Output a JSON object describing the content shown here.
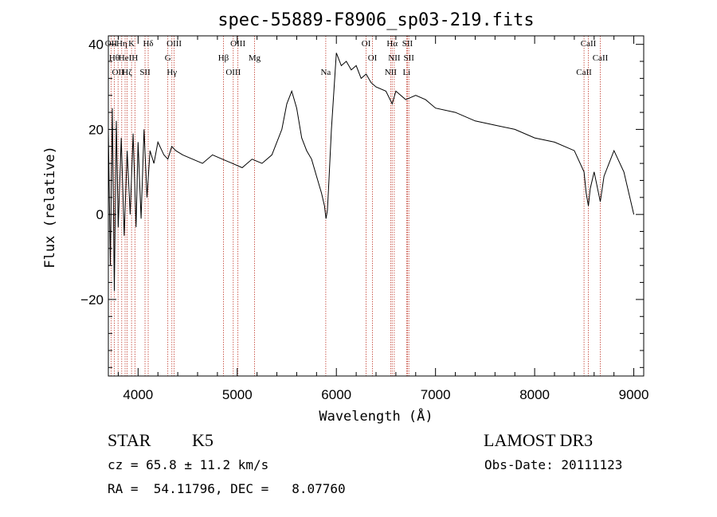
{
  "chart_data": {
    "type": "line",
    "title": "spec-55889-F8906_sp03-219.fits",
    "xlabel": "Wavelength (Å)",
    "ylabel": "Flux (relative)",
    "xlim": [
      3700,
      9100
    ],
    "ylim": [
      -38,
      42
    ],
    "xticks": [
      4000,
      5000,
      6000,
      7000,
      8000,
      9000
    ],
    "xtick_labels": [
      "4000",
      "5000",
      "6000",
      "7000",
      "8000",
      "9000"
    ],
    "yticks": [
      -20,
      0,
      20,
      40
    ],
    "ytick_labels": [
      "−20",
      "0",
      "20",
      "40"
    ],
    "series": [
      {
        "name": "spectrum",
        "x": [
          3700,
          3720,
          3740,
          3760,
          3780,
          3800,
          3830,
          3860,
          3890,
          3920,
          3950,
          3980,
          4000,
          4030,
          4060,
          4090,
          4120,
          4160,
          4200,
          4260,
          4300,
          4340,
          4380,
          4450,
          4550,
          4650,
          4750,
          4850,
          4950,
          5050,
          5150,
          5250,
          5350,
          5450,
          5500,
          5550,
          5600,
          5650,
          5700,
          5750,
          5800,
          5850,
          5880,
          5895,
          5910,
          5925,
          5950,
          6000,
          6050,
          6100,
          6150,
          6200,
          6250,
          6300,
          6350,
          6400,
          6500,
          6563,
          6600,
          6700,
          6800,
          6900,
          7000,
          7200,
          7400,
          7600,
          7800,
          8000,
          8200,
          8400,
          8498,
          8520,
          8542,
          8560,
          8600,
          8662,
          8700,
          8800,
          8900,
          9000
        ],
        "y": [
          20,
          -12,
          25,
          -18,
          22,
          -3,
          18,
          -5,
          15,
          0,
          19,
          -3,
          17,
          -1,
          20,
          4,
          15,
          12,
          17,
          14,
          13,
          16,
          15,
          14,
          13,
          12,
          14,
          13,
          12,
          11,
          13,
          12,
          14,
          20,
          26,
          29,
          25,
          18,
          15,
          13,
          9,
          5,
          2,
          -1,
          1,
          8,
          20,
          38,
          35,
          36,
          34,
          35,
          32,
          33,
          31,
          30,
          29,
          26,
          29,
          27,
          28,
          27,
          25,
          24,
          22,
          21,
          20,
          18,
          17,
          15,
          10,
          5,
          2,
          6,
          10,
          3,
          9,
          15,
          10,
          0
        ]
      }
    ],
    "spectral_lines": [
      {
        "x": 3727,
        "label": "OII"
      },
      {
        "x": 3760,
        "label": "Hθ"
      },
      {
        "x": 3798,
        "label": "OII"
      },
      {
        "x": 3835,
        "label": "Hη"
      },
      {
        "x": 3869,
        "label": "HeI"
      },
      {
        "x": 3889,
        "label": "Hζ"
      },
      {
        "x": 3934,
        "label": "K"
      },
      {
        "x": 3968,
        "label": "H"
      },
      {
        "x": 4070,
        "label": "SII"
      },
      {
        "x": 4102,
        "label": "Hδ"
      },
      {
        "x": 4300,
        "label": "G"
      },
      {
        "x": 4341,
        "label": "Hγ"
      },
      {
        "x": 4364,
        "label": "OIII"
      },
      {
        "x": 4861,
        "label": "Hβ"
      },
      {
        "x": 4960,
        "label": "OIII"
      },
      {
        "x": 5007,
        "label": "OIII"
      },
      {
        "x": 5175,
        "label": "Mg"
      },
      {
        "x": 5893,
        "label": "Na"
      },
      {
        "x": 6300,
        "label": "OI"
      },
      {
        "x": 6364,
        "label": "OI"
      },
      {
        "x": 6548,
        "label": "NII"
      },
      {
        "x": 6563,
        "label": "Hα"
      },
      {
        "x": 6584,
        "label": "NII"
      },
      {
        "x": 6708,
        "label": "Li"
      },
      {
        "x": 6717,
        "label": "SII"
      },
      {
        "x": 6731,
        "label": "SII"
      },
      {
        "x": 8498,
        "label": "CaII"
      },
      {
        "x": 8542,
        "label": "CaII"
      },
      {
        "x": 8662,
        "label": "CaII"
      }
    ],
    "colors": {
      "spectrum": "#000000",
      "lines": "#c0392b",
      "axes": "#000000"
    }
  },
  "info": {
    "class": "STAR",
    "subclass": "K5",
    "survey": "LAMOST DR3",
    "cz": "cz = 65.8 ± 11.2 km/s",
    "obs_date": "Obs-Date: 20111123",
    "coords": "RA =  54.11796, DEC =   8.07760"
  }
}
